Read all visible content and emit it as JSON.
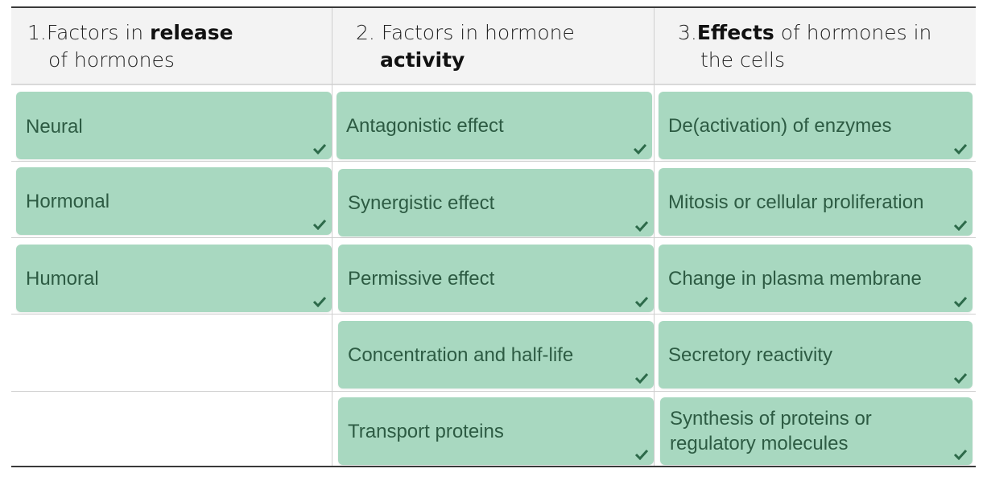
{
  "columns": [
    {
      "number": "1.",
      "pre": "Factors in ",
      "bold": "release",
      "post": "",
      "line2_pre": "of hormones",
      "line2_bold": "",
      "line2_post": ""
    },
    {
      "number": "2.",
      "pre": "Factors in hormone",
      "bold": "",
      "post": "",
      "line2_pre": "",
      "line2_bold": "activity",
      "line2_post": ""
    },
    {
      "number": "3.",
      "pre": "",
      "bold": "Effects",
      "post": " of hormones in",
      "line2_pre": "the cells",
      "line2_bold": "",
      "line2_post": ""
    }
  ],
  "cards": {
    "col1": [
      {
        "label": "Neural",
        "status": "correct"
      },
      {
        "label": "Hormonal",
        "status": "correct"
      },
      {
        "label": "Humoral",
        "status": "correct"
      }
    ],
    "col2": [
      {
        "label": "Antagonistic effect",
        "status": "correct"
      },
      {
        "label": "Synergistic effect",
        "status": "correct"
      },
      {
        "label": "Permissive effect",
        "status": "correct"
      },
      {
        "label": "Concentration and half-life",
        "status": "correct"
      },
      {
        "label": "Transport proteins",
        "status": "correct"
      }
    ],
    "col3": [
      {
        "label": "De(activation) of enzymes",
        "status": "correct"
      },
      {
        "label": "Mitosis or cellular proliferation",
        "status": "correct"
      },
      {
        "label": "Change in plasma membrane",
        "status": "correct"
      },
      {
        "label": "Secretory reactivity",
        "status": "correct"
      },
      {
        "label": "Synthesis of proteins or regulatory molecules",
        "status": "correct"
      }
    ]
  },
  "colors": {
    "card_bg": "#a8d8c0",
    "card_text": "#2d5b43",
    "check": "#2d6a4a",
    "header_bg": "#f3f3f3"
  }
}
